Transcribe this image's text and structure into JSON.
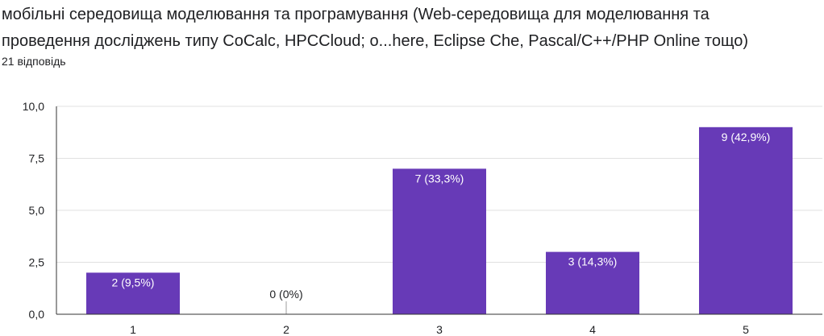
{
  "question": {
    "title_line1": "мобільні середовища моделювання та програмування (Web-середовища для моделювання та",
    "title_line2": "проведення досліджень типу CoCalc, HPCCloud; o...here, Eclipse Che, Pascal/C++/PHP Online тощо)",
    "response_count": "21 відповідь"
  },
  "colors": {
    "bar": "#673ab7",
    "grid": "#e0e0e0",
    "axis": "#333333",
    "text": "#202124",
    "label_inside": "#ffffff",
    "zero_marker": "#9e9e9e"
  },
  "chart_data": {
    "type": "bar",
    "categories": [
      "1",
      "2",
      "3",
      "4",
      "5"
    ],
    "values": [
      2,
      0,
      7,
      3,
      9
    ],
    "data_labels": [
      "2 (9,5%)",
      "0 (0%)",
      "7 (33,3%)",
      "3 (14,3%)",
      "9 (42,9%)"
    ],
    "yticks": [
      0,
      2.5,
      5,
      7.5,
      10
    ],
    "ytick_labels": [
      "0,0",
      "2,5",
      "5,0",
      "7,5",
      "10,0"
    ],
    "ylim": [
      0,
      10
    ],
    "grid": true,
    "legend": false
  }
}
